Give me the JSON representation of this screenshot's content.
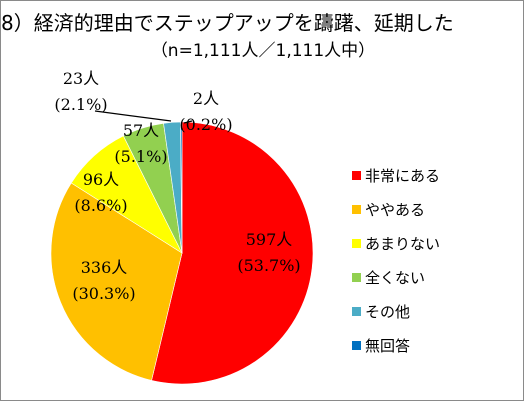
{
  "title": "8）経済的理由でステップアップを躊躇、延期した",
  "subtitle": "（n=1,111人／1,111人中）",
  "chart_data": {
    "type": "pie",
    "title": "8）経済的理由でステップアップを躊躇、延期した",
    "subtitle": "（n=1,111人／1,111人中）",
    "start": "12 o'clock, clockwise",
    "legend_position": "right",
    "slices": [
      {
        "label": "非常にある",
        "count": 597,
        "count_text": "597人",
        "percent_text": "(53.7%)",
        "value": 53.7,
        "color": "#ff0000"
      },
      {
        "label": "ややある",
        "count": 336,
        "count_text": "336人",
        "percent_text": "(30.3%)",
        "value": 30.3,
        "color": "#ffc000"
      },
      {
        "label": "あまりない",
        "count": 96,
        "count_text": "96人",
        "percent_text": "(8.6%)",
        "value": 8.6,
        "color": "#ffff00"
      },
      {
        "label": "全くない",
        "count": 57,
        "count_text": "57人",
        "percent_text": "(5.1%)",
        "value": 5.1,
        "color": "#92d050"
      },
      {
        "label": "その他",
        "count": 23,
        "count_text": "23人",
        "percent_text": "(2.1%)",
        "value": 2.1,
        "color": "#4bacc6"
      },
      {
        "label": "無回答",
        "count": 2,
        "count_text": "2人",
        "percent_text": "(0.2%)",
        "value": 0.2,
        "color": "#0070c0"
      }
    ]
  }
}
